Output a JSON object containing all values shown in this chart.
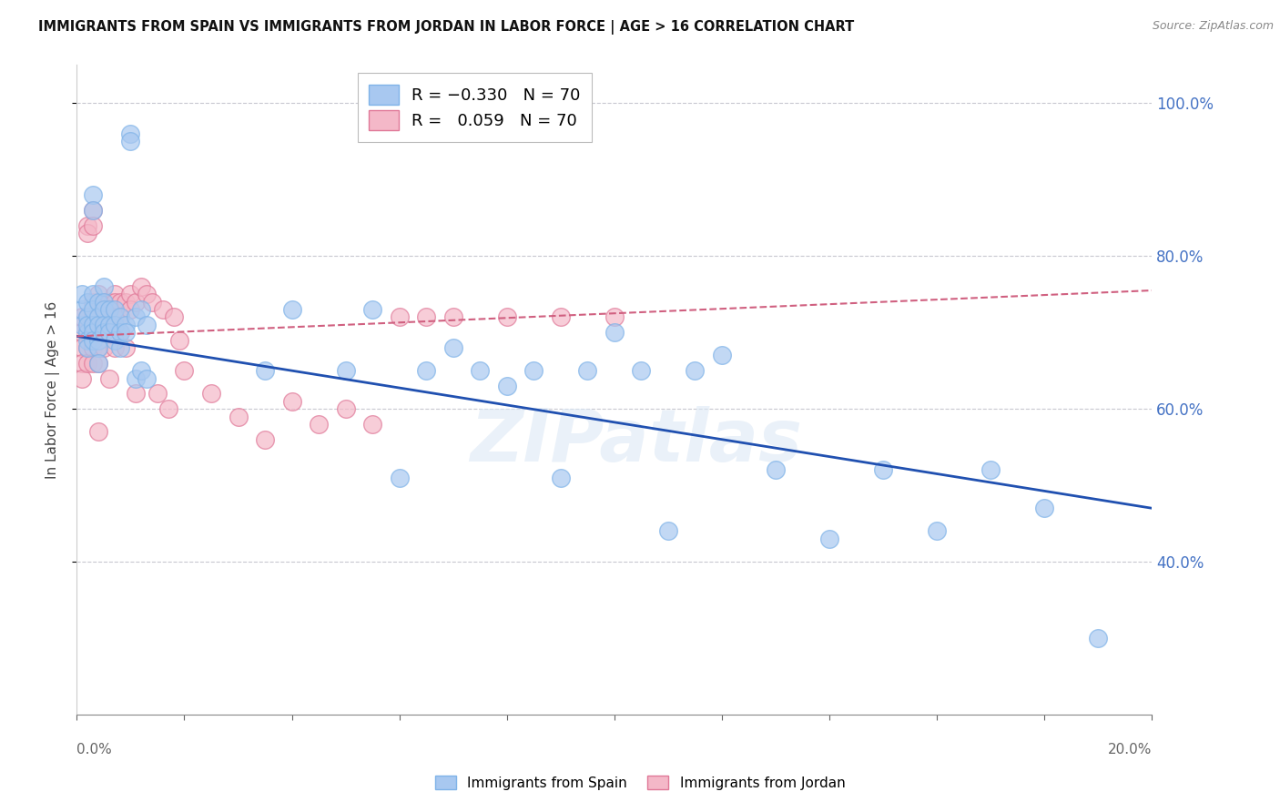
{
  "title": "IMMIGRANTS FROM SPAIN VS IMMIGRANTS FROM JORDAN IN LABOR FORCE | AGE > 16 CORRELATION CHART",
  "source": "Source: ZipAtlas.com",
  "ylabel": "In Labor Force | Age > 16",
  "xlim": [
    0.0,
    0.2
  ],
  "ylim": [
    0.2,
    1.05
  ],
  "spain_x": [
    0.001,
    0.001,
    0.001,
    0.002,
    0.002,
    0.002,
    0.002,
    0.002,
    0.002,
    0.003,
    0.003,
    0.003,
    0.003,
    0.003,
    0.003,
    0.003,
    0.004,
    0.004,
    0.004,
    0.004,
    0.004,
    0.004,
    0.005,
    0.005,
    0.005,
    0.005,
    0.005,
    0.006,
    0.006,
    0.006,
    0.007,
    0.007,
    0.007,
    0.008,
    0.008,
    0.008,
    0.009,
    0.009,
    0.01,
    0.01,
    0.011,
    0.011,
    0.012,
    0.012,
    0.013,
    0.013,
    0.035,
    0.04,
    0.05,
    0.055,
    0.06,
    0.065,
    0.07,
    0.075,
    0.08,
    0.085,
    0.09,
    0.095,
    0.1,
    0.105,
    0.11,
    0.115,
    0.12,
    0.13,
    0.14,
    0.15,
    0.16,
    0.17,
    0.18,
    0.19
  ],
  "spain_y": [
    0.71,
    0.73,
    0.75,
    0.7,
    0.72,
    0.74,
    0.71,
    0.69,
    0.68,
    0.88,
    0.86,
    0.75,
    0.73,
    0.71,
    0.7,
    0.69,
    0.74,
    0.72,
    0.71,
    0.69,
    0.68,
    0.66,
    0.76,
    0.74,
    0.73,
    0.71,
    0.7,
    0.73,
    0.71,
    0.7,
    0.73,
    0.71,
    0.69,
    0.72,
    0.7,
    0.68,
    0.71,
    0.7,
    0.96,
    0.95,
    0.72,
    0.64,
    0.73,
    0.65,
    0.71,
    0.64,
    0.65,
    0.73,
    0.65,
    0.73,
    0.51,
    0.65,
    0.68,
    0.65,
    0.63,
    0.65,
    0.51,
    0.65,
    0.7,
    0.65,
    0.44,
    0.65,
    0.67,
    0.52,
    0.43,
    0.52,
    0.44,
    0.52,
    0.47,
    0.3
  ],
  "jordan_x": [
    0.001,
    0.001,
    0.001,
    0.001,
    0.001,
    0.002,
    0.002,
    0.002,
    0.002,
    0.002,
    0.002,
    0.003,
    0.003,
    0.003,
    0.003,
    0.003,
    0.003,
    0.003,
    0.004,
    0.004,
    0.004,
    0.004,
    0.004,
    0.004,
    0.004,
    0.005,
    0.005,
    0.005,
    0.005,
    0.005,
    0.006,
    0.006,
    0.006,
    0.006,
    0.007,
    0.007,
    0.007,
    0.007,
    0.008,
    0.008,
    0.008,
    0.009,
    0.009,
    0.01,
    0.01,
    0.011,
    0.011,
    0.012,
    0.013,
    0.014,
    0.015,
    0.016,
    0.017,
    0.018,
    0.019,
    0.02,
    0.025,
    0.03,
    0.035,
    0.04,
    0.045,
    0.05,
    0.055,
    0.06,
    0.065,
    0.07,
    0.08,
    0.09,
    0.1
  ],
  "jordan_y": [
    0.7,
    0.72,
    0.68,
    0.66,
    0.64,
    0.84,
    0.83,
    0.72,
    0.7,
    0.68,
    0.66,
    0.86,
    0.84,
    0.74,
    0.72,
    0.7,
    0.68,
    0.66,
    0.75,
    0.73,
    0.72,
    0.7,
    0.68,
    0.66,
    0.57,
    0.74,
    0.73,
    0.72,
    0.7,
    0.68,
    0.74,
    0.73,
    0.71,
    0.64,
    0.75,
    0.74,
    0.72,
    0.68,
    0.74,
    0.72,
    0.7,
    0.74,
    0.68,
    0.75,
    0.73,
    0.74,
    0.62,
    0.76,
    0.75,
    0.74,
    0.62,
    0.73,
    0.6,
    0.72,
    0.69,
    0.65,
    0.62,
    0.59,
    0.56,
    0.61,
    0.58,
    0.6,
    0.58,
    0.72,
    0.72,
    0.72,
    0.72,
    0.72,
    0.72
  ],
  "spain_color": "#a8c8f0",
  "spain_edge": "#7fb3e8",
  "jordan_color": "#f4b8c8",
  "jordan_edge": "#e07898",
  "blue_line_color": "#2050b0",
  "pink_line_color": "#d06080",
  "watermark": "ZIPatlas",
  "background_color": "#ffffff",
  "grid_color": "#c8c8d0",
  "yticks": [
    0.4,
    0.6,
    0.8,
    1.0
  ],
  "xticks": [
    0.0,
    0.02,
    0.04,
    0.06,
    0.08,
    0.1,
    0.12,
    0.14,
    0.16,
    0.18,
    0.2
  ]
}
